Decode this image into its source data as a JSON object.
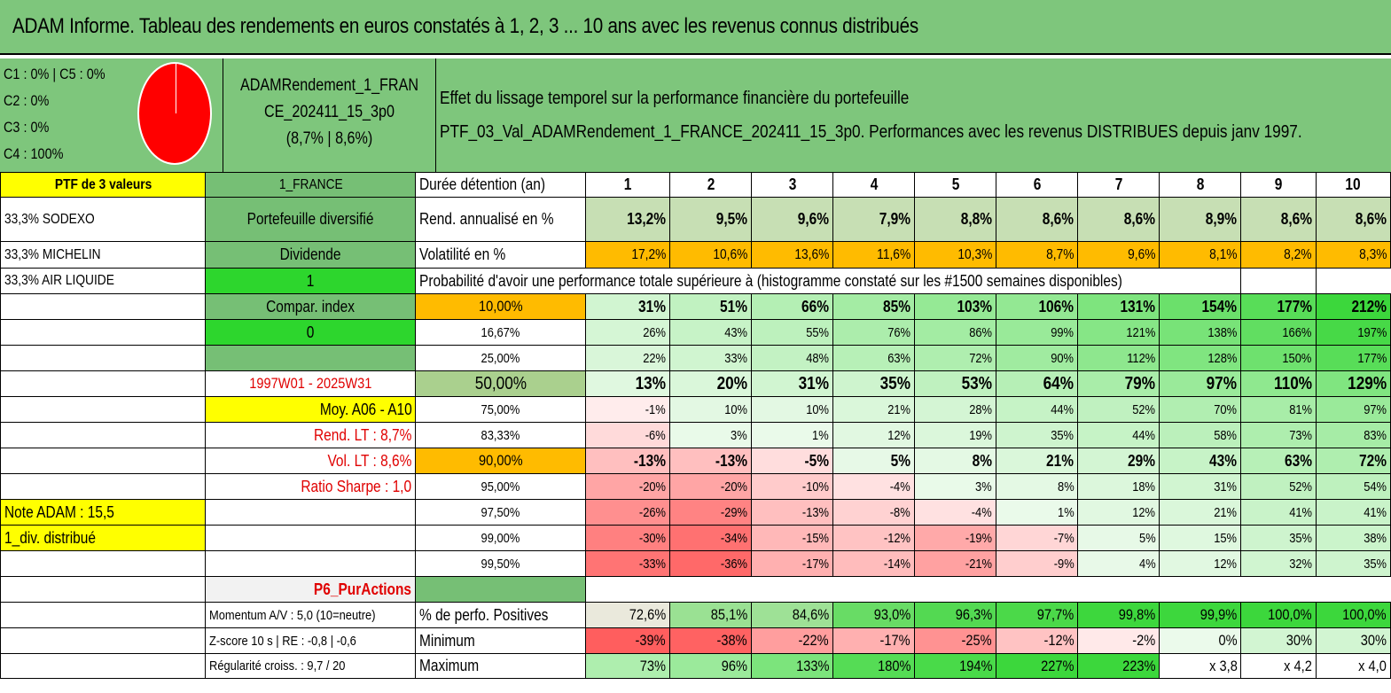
{
  "title": "ADAM Informe. Tableau des rendements en euros constatés à 1, 2, 3 ... 10 ans avec les revenus connus distribués",
  "composition": [
    "C1 : 0% | C5 : 0%",
    "C2 : 0%",
    "C3 : 0%",
    "C4 : 100%"
  ],
  "fund": {
    "line1": "ADAMRendement_1_FRAN",
    "line2": "CE_202411_15_3p0",
    "line3": "(8,7% | 8,6%)"
  },
  "description": {
    "line1": "Effet du lissage temporel sur la performance financière du portefeuille",
    "line2": "PTF_03_Val_ADAMRendement_1_FRANCE_202411_15_3p0. Performances avec les revenus DISTRIBUES depuis janv 1997."
  },
  "side": {
    "ptf": "PTF de 3 valeurs",
    "holdings": [
      "33,3% SODEXO",
      "33,3% MICHELIN",
      "33,3% AIR LIQUIDE"
    ],
    "label_1france": "1_FRANCE",
    "portefeuille": "Portefeuille diversifié",
    "dividende": "Dividende",
    "div_value": "1",
    "compar_index": "Compar. index",
    "compar_value": "0",
    "period": "1997W01 - 2025W31",
    "moy": "Moy. A06 - A10",
    "rend_lt": "Rend. LT : 8,7%",
    "vol_lt": "Vol. LT : 8,6%",
    "sharpe": "Ratio Sharpe : 1,0",
    "note": "Note ADAM : 15,5",
    "div_distrib": "1_div. distribué",
    "p6": "P6_PurActions",
    "momentum": "Momentum A/V : 5,0 (10=neutre)",
    "zscore": "Z-score 10 s | RE : -0,8 | -0,6",
    "regularite": "Régularité croiss. : 9,7 / 20"
  },
  "table": {
    "duree_label": "Durée détention (an)",
    "years": [
      "1",
      "2",
      "3",
      "4",
      "5",
      "6",
      "7",
      "8",
      "9",
      "10"
    ],
    "rend_label": "Rend. annualisé en %",
    "rend": [
      "13,2%",
      "9,5%",
      "9,6%",
      "7,9%",
      "8,8%",
      "8,6%",
      "8,6%",
      "8,9%",
      "8,6%",
      "8,6%"
    ],
    "vol_label": "Volatilité en %",
    "vol": [
      "17,2%",
      "10,6%",
      "13,6%",
      "11,6%",
      "10,3%",
      "8,7%",
      "9,6%",
      "8,1%",
      "8,2%",
      "8,3%"
    ],
    "proba_label": "Probabilité d'avoir une performance totale supérieure à (histogramme constaté sur les #1500 semaines disponibles)",
    "prob_rows": [
      {
        "p": "10,00%",
        "v": [
          "31%",
          "51%",
          "66%",
          "85%",
          "103%",
          "106%",
          "131%",
          "154%",
          "177%",
          "212%"
        ]
      },
      {
        "p": "16,67%",
        "v": [
          "26%",
          "43%",
          "55%",
          "76%",
          "86%",
          "99%",
          "121%",
          "138%",
          "166%",
          "197%"
        ]
      },
      {
        "p": "25,00%",
        "v": [
          "22%",
          "33%",
          "48%",
          "63%",
          "72%",
          "90%",
          "112%",
          "128%",
          "150%",
          "177%"
        ]
      },
      {
        "p": "50,00%",
        "v": [
          "13%",
          "20%",
          "31%",
          "35%",
          "53%",
          "64%",
          "79%",
          "97%",
          "110%",
          "129%"
        ]
      },
      {
        "p": "75,00%",
        "v": [
          "-1%",
          "10%",
          "10%",
          "21%",
          "28%",
          "44%",
          "52%",
          "70%",
          "81%",
          "97%"
        ]
      },
      {
        "p": "83,33%",
        "v": [
          "-6%",
          "3%",
          "1%",
          "12%",
          "19%",
          "35%",
          "44%",
          "58%",
          "73%",
          "83%"
        ]
      },
      {
        "p": "90,00%",
        "v": [
          "-13%",
          "-13%",
          "-5%",
          "5%",
          "8%",
          "21%",
          "29%",
          "43%",
          "63%",
          "72%"
        ]
      },
      {
        "p": "95,00%",
        "v": [
          "-20%",
          "-20%",
          "-10%",
          "-4%",
          "3%",
          "8%",
          "18%",
          "31%",
          "52%",
          "54%"
        ]
      },
      {
        "p": "97,50%",
        "v": [
          "-26%",
          "-29%",
          "-13%",
          "-8%",
          "-4%",
          "1%",
          "12%",
          "21%",
          "41%",
          "41%"
        ]
      },
      {
        "p": "99,00%",
        "v": [
          "-30%",
          "-34%",
          "-15%",
          "-12%",
          "-19%",
          "-7%",
          "5%",
          "15%",
          "35%",
          "38%"
        ]
      },
      {
        "p": "99,50%",
        "v": [
          "-33%",
          "-36%",
          "-17%",
          "-14%",
          "-21%",
          "-9%",
          "4%",
          "12%",
          "32%",
          "35%"
        ]
      }
    ],
    "pos_label": "% de perfo. Positives",
    "pos": [
      "72,6%",
      "85,1%",
      "84,6%",
      "93,0%",
      "96,3%",
      "97,7%",
      "99,8%",
      "99,9%",
      "100,0%",
      "100,0%"
    ],
    "min_label": "Minimum",
    "min": [
      "-39%",
      "-38%",
      "-22%",
      "-17%",
      "-25%",
      "-12%",
      "-2%",
      "0%",
      "30%",
      "30%"
    ],
    "max_label": "Maximum",
    "max": [
      "73%",
      "96%",
      "133%",
      "180%",
      "194%",
      "227%",
      "223%",
      "x 3,8",
      "x 4,2",
      "x 4,0"
    ]
  },
  "colors": {
    "header_green": "#7ec67c",
    "mid_green": "#76bf75",
    "bright_green": "#2dd62d",
    "yellow": "#ffff00",
    "orange": "#ffbb00",
    "rend_green": "#c7dfb4",
    "p50": "#aad08e",
    "red_text": "#e00000"
  }
}
